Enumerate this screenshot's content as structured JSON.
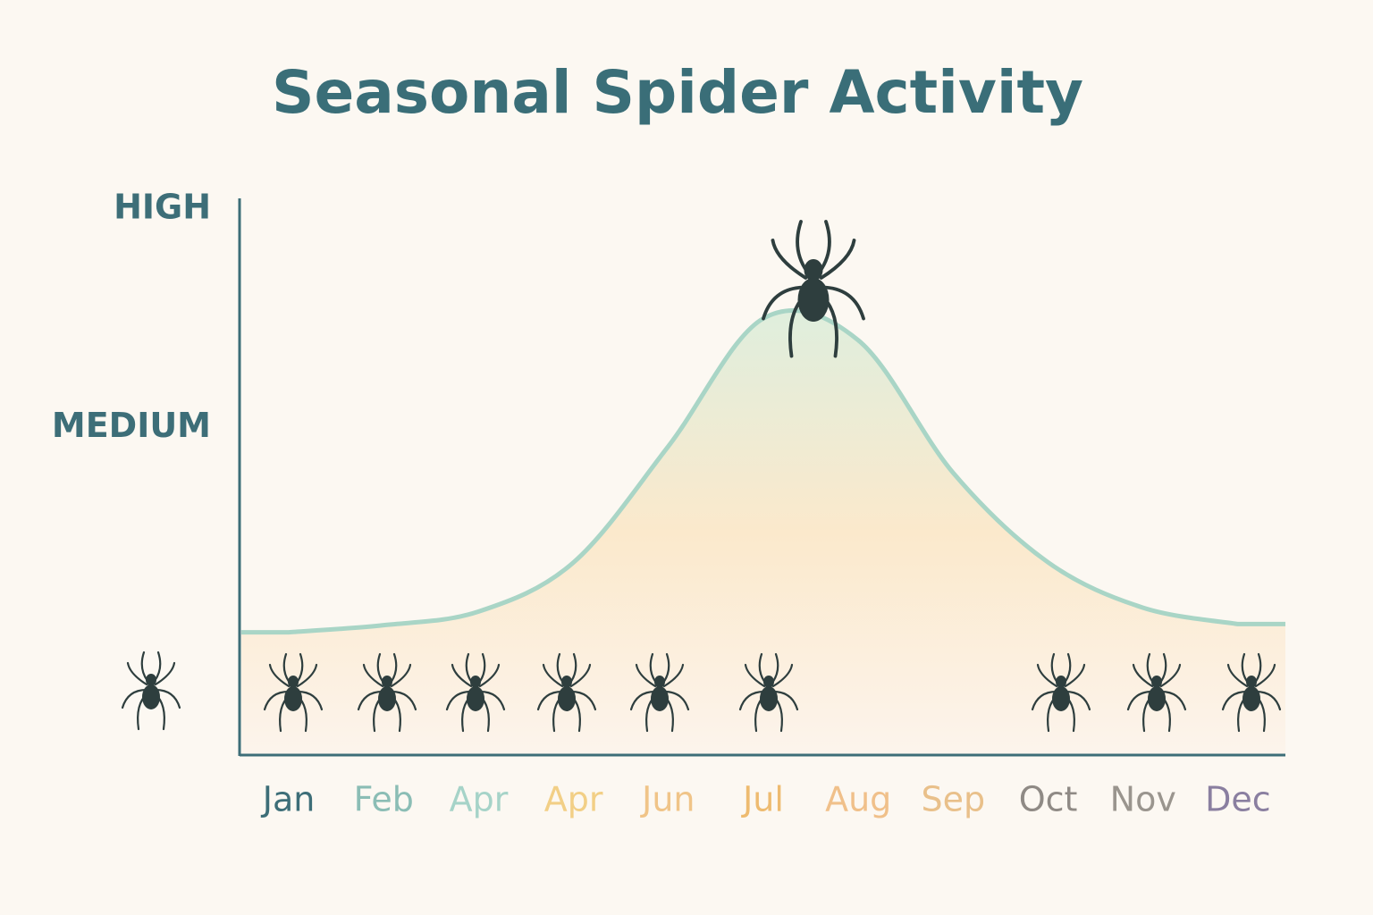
{
  "chart_data": {
    "type": "area",
    "title": "Seasonal Spider Activity",
    "categories": [
      "Jan",
      "Feb",
      "Apr",
      "Apr",
      "Jun",
      "Jul",
      "Aug",
      "Sep",
      "Oct",
      "Nov",
      "Dec"
    ],
    "category_colors": [
      "#3d6e78",
      "#8bbdb5",
      "#a6d3c8",
      "#f2cf86",
      "#f0c488",
      "#eebb70",
      "#f0c08a",
      "#e9c08a",
      "#8f8a85",
      "#9a958e",
      "#8a7fa0"
    ],
    "values": [
      22.5,
      23.8,
      26.3,
      35.3,
      56.6,
      80,
      76,
      51.7,
      35.3,
      27,
      24
    ],
    "color": "#a9d5c6",
    "ylim": [
      0,
      102
    ],
    "yticks": [
      {
        "value": 60,
        "label": "MEDIUM"
      },
      {
        "value": 100,
        "label": "HIGH"
      }
    ]
  }
}
